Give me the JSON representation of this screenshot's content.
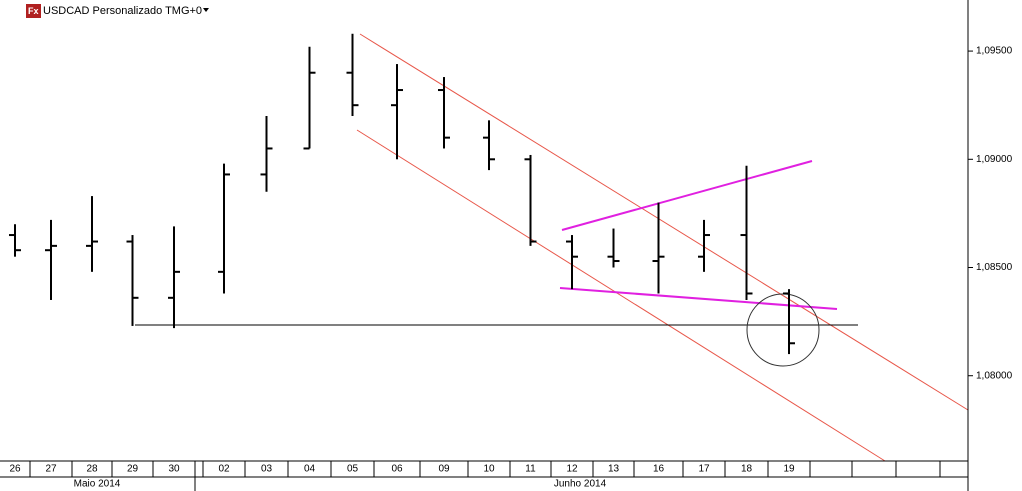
{
  "chart_data": {
    "type": "ohlc",
    "title": "USDCAD Personalizado TMG+0",
    "categories": [
      "26",
      "27",
      "28",
      "29",
      "30",
      "02",
      "03",
      "04",
      "05",
      "06",
      "09",
      "10",
      "11",
      "12",
      "13",
      "16",
      "17",
      "18",
      "19"
    ],
    "months": [
      "Maio 2014",
      "Junho 2014"
    ],
    "open": [
      1.0865,
      1.0858,
      1.086,
      1.0862,
      1.0836,
      1.0848,
      1.0893,
      1.0905,
      1.094,
      1.0925,
      1.0932,
      1.091,
      1.09,
      1.0862,
      1.0855,
      1.0853,
      1.0855,
      1.0865,
      1.0838
    ],
    "high": [
      1.087,
      1.0872,
      1.0883,
      1.0865,
      1.0869,
      1.0898,
      1.092,
      1.0952,
      1.0958,
      1.0944,
      1.0938,
      1.0918,
      1.0902,
      1.0865,
      1.0868,
      1.088,
      1.0872,
      1.0897,
      1.084
    ],
    "low": [
      1.0855,
      1.0835,
      1.0848,
      1.0823,
      1.0822,
      1.0838,
      1.0885,
      1.0905,
      1.092,
      1.09,
      1.0905,
      1.0895,
      1.086,
      1.084,
      1.085,
      1.0838,
      1.0848,
      1.0835,
      1.081
    ],
    "close": [
      1.0858,
      1.086,
      1.0862,
      1.0836,
      1.0848,
      1.0893,
      1.0905,
      1.094,
      1.0925,
      1.0932,
      1.091,
      1.09,
      1.0862,
      1.0855,
      1.0853,
      1.0855,
      1.0865,
      1.0838,
      1.0815
    ],
    "color": "#000000",
    "ylim": [
      1.07606,
      1.09736
    ],
    "yticks": [
      {
        "value": 1.095,
        "label": "1,09500"
      },
      {
        "value": 1.09,
        "label": "1,09000"
      },
      {
        "value": 1.085,
        "label": "1,08500"
      },
      {
        "value": 1.08,
        "label": "1,08000"
      }
    ]
  }
}
